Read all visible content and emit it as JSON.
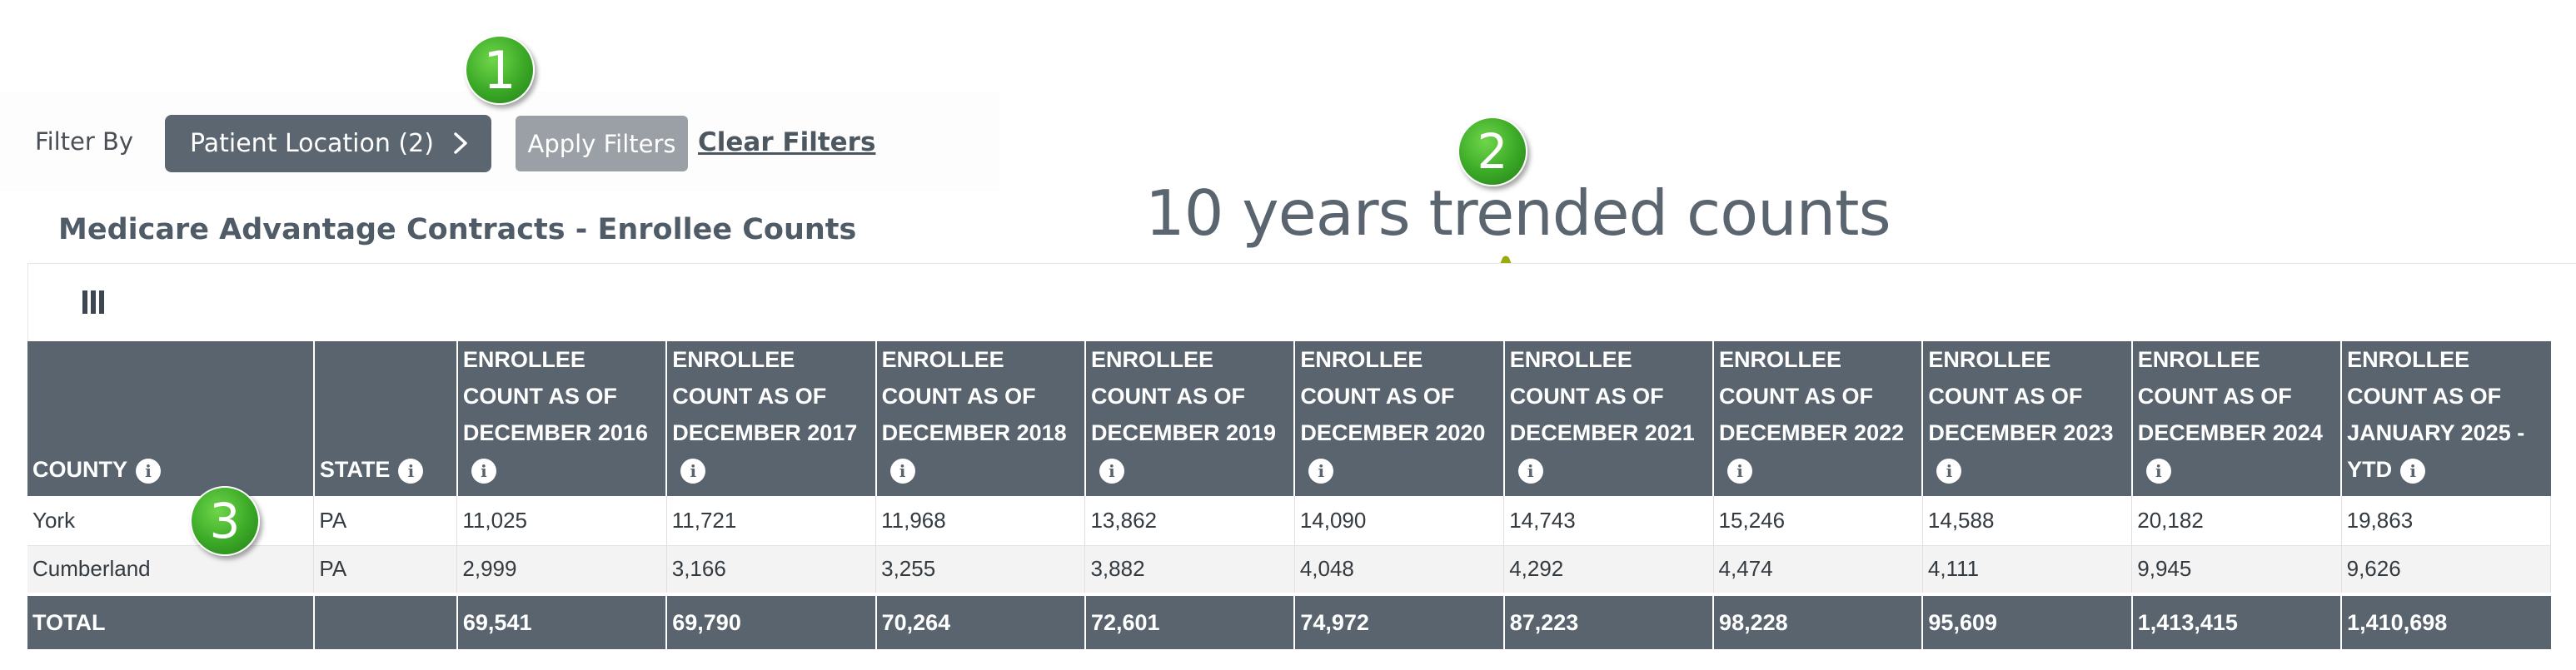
{
  "filter": {
    "label": "Filter By",
    "location_button": "Patient Location (2)",
    "apply_button": "Apply Filters",
    "clear_link": "Clear Filters"
  },
  "section_title": "Medicare Advantage Contracts - Enrollee Counts",
  "annotation": {
    "trend_title": "10 years trended counts",
    "badges": [
      "1",
      "2",
      "3"
    ],
    "brace_color": "#9aab0c",
    "badge_color": "#3aa826"
  },
  "toolbar": {
    "columns_icon": "columns-icon"
  },
  "table": {
    "headers": [
      "COUNTY",
      "STATE",
      "ENROLLEE COUNT AS OF DECEMBER 2016",
      "ENROLLEE COUNT AS OF DECEMBER 2017",
      "ENROLLEE COUNT AS OF DECEMBER 2018",
      "ENROLLEE COUNT AS OF DECEMBER 2019",
      "ENROLLEE COUNT AS OF DECEMBER 2020",
      "ENROLLEE COUNT AS OF DECEMBER 2021",
      "ENROLLEE COUNT AS OF DECEMBER 2022",
      "ENROLLEE COUNT AS OF DECEMBER 2023",
      "ENROLLEE COUNT AS OF DECEMBER 2024",
      "ENROLLEE COUNT AS OF JANUARY 2025 - YTD"
    ],
    "info_icon": "i",
    "rows": [
      [
        "York",
        "PA",
        "11,025",
        "11,721",
        "11,968",
        "13,862",
        "14,090",
        "14,743",
        "15,246",
        "14,588",
        "20,182",
        "19,863"
      ],
      [
        "Cumberland",
        "PA",
        "2,999",
        "3,166",
        "3,255",
        "3,882",
        "4,048",
        "4,292",
        "4,474",
        "4,111",
        "9,945",
        "9,626"
      ]
    ],
    "total": [
      "TOTAL",
      "",
      "69,541",
      "69,790",
      "70,264",
      "72,601",
      "74,972",
      "87,223",
      "98,228",
      "95,609",
      "1,413,415",
      "1,410,698"
    ]
  },
  "colors": {
    "header_bg": "#59646e",
    "button_bg": "#5c6670",
    "apply_bg": "#9aa0a6"
  }
}
